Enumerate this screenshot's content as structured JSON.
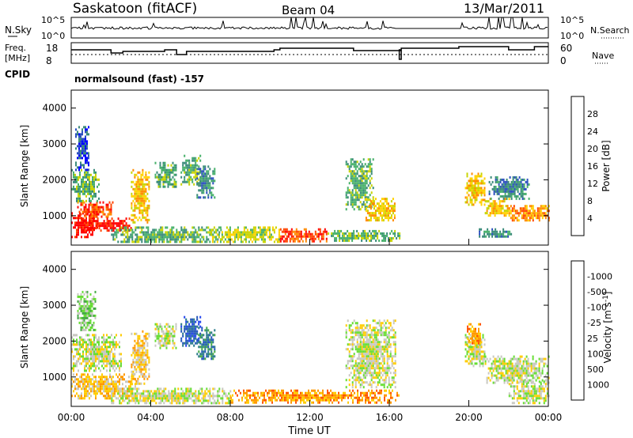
{
  "header": {
    "station": "Saskatoon (fitACF)",
    "beam": "Beam 04",
    "date": "13/Mar/2011"
  },
  "top_panel": {
    "left_label": "N.Sky",
    "left_ticks": [
      "10^5",
      "10^0"
    ],
    "right_label": "N.Search",
    "right_ticks": [
      "10^5",
      "10^0"
    ]
  },
  "freq_panel": {
    "left_label_1": "Freq.",
    "left_label_2": "[MHz]",
    "left_ticks": [
      "18",
      "8"
    ],
    "right_label": "Nave",
    "right_ticks": [
      "60",
      "0"
    ]
  },
  "cpid": {
    "label": "CPID",
    "program": "normalsound (fast) -157"
  },
  "colors": {
    "power_scale": [
      "#0000ff",
      "#2c4fc0",
      "#3a8a7a",
      "#47b06a",
      "#c8d400",
      "#ffd200",
      "#ff8c00",
      "#ff4500",
      "#ff0000"
    ],
    "velocity_scale": [
      "#2244ee",
      "#2255bb",
      "#2a7a8a",
      "#44aa44",
      "#66dd33",
      "#c8c8c0",
      "#ffcc00",
      "#ff9900",
      "#ff5500",
      "#ff0000"
    ],
    "ground_scatter": "#c8c8c0"
  },
  "chart_data": [
    {
      "type": "heatmap",
      "name": "power",
      "xlabel": "",
      "ylabel": "Slant Range [km]",
      "ylim": [
        180,
        4500
      ],
      "yticks": [
        "1000",
        "2000",
        "3000",
        "4000"
      ],
      "colorbar_label": "Power [dB]",
      "colorbar_ticks": [
        "4",
        "8",
        "12",
        "16",
        "20",
        "24",
        "28"
      ],
      "blobs": [
        {
          "t0": 0.0,
          "t1": 1.3,
          "r0": 400,
          "r1": 1100,
          "level": 8
        },
        {
          "t0": 0.3,
          "t1": 2.1,
          "r0": 1000,
          "r1": 1400,
          "level": 7
        },
        {
          "t0": 0.5,
          "t1": 3.0,
          "r0": 600,
          "r1": 950,
          "level": 8
        },
        {
          "t0": 0.0,
          "t1": 1.4,
          "r0": 1400,
          "r1": 2300,
          "level": 3
        },
        {
          "t0": 0.2,
          "t1": 0.9,
          "r0": 2300,
          "r1": 3500,
          "level": 1
        },
        {
          "t0": 3.0,
          "t1": 3.9,
          "r0": 800,
          "r1": 2300,
          "level": 5
        },
        {
          "t0": 4.2,
          "t1": 5.3,
          "r0": 1800,
          "r1": 2500,
          "level": 3
        },
        {
          "t0": 5.5,
          "t1": 6.5,
          "r0": 1900,
          "r1": 2700,
          "level": 3
        },
        {
          "t0": 6.3,
          "t1": 7.2,
          "r0": 1500,
          "r1": 2400,
          "level": 2
        },
        {
          "t0": 2.0,
          "t1": 7.5,
          "r0": 250,
          "r1": 700,
          "level": 3
        },
        {
          "t0": 7.0,
          "t1": 10.5,
          "r0": 300,
          "r1": 700,
          "level": 4
        },
        {
          "t0": 10.5,
          "t1": 12.9,
          "r0": 300,
          "r1": 650,
          "level": 7
        },
        {
          "t0": 12.9,
          "t1": 16.5,
          "r0": 300,
          "r1": 600,
          "level": 3
        },
        {
          "t0": 13.8,
          "t1": 15.2,
          "r0": 1200,
          "r1": 2600,
          "level": 3
        },
        {
          "t0": 14.8,
          "t1": 16.3,
          "r0": 900,
          "r1": 1500,
          "level": 5
        },
        {
          "t0": 19.8,
          "t1": 20.8,
          "r0": 1300,
          "r1": 2200,
          "level": 5
        },
        {
          "t0": 20.8,
          "t1": 22.0,
          "r0": 1000,
          "r1": 1500,
          "level": 5
        },
        {
          "t0": 22.0,
          "t1": 24.0,
          "r0": 850,
          "r1": 1300,
          "level": 6
        },
        {
          "t0": 20.5,
          "t1": 22.2,
          "r0": 400,
          "r1": 650,
          "level": 2
        },
        {
          "t0": 21.0,
          "t1": 23.0,
          "r0": 1500,
          "r1": 2100,
          "level": 2
        }
      ]
    },
    {
      "type": "heatmap",
      "name": "velocity",
      "xlabel": "Time UT",
      "ylabel": "Slant Range [km]",
      "ylim": [
        180,
        4500
      ],
      "yticks": [
        "1000",
        "2000",
        "3000",
        "4000"
      ],
      "xticks": [
        "00:00",
        "04:00",
        "08:00",
        "12:00",
        "16:00",
        "20:00",
        "00:00"
      ],
      "colorbar_label": "Velocity [m s^-1]",
      "colorbar_ticks": [
        "1000",
        "500",
        "100",
        "25",
        "-25",
        "-100",
        "-500",
        "-1000"
      ],
      "blobs": [
        {
          "t0": 0.0,
          "t1": 3.2,
          "r0": 400,
          "r1": 1100,
          "level": 6
        },
        {
          "t0": 0.0,
          "t1": 2.5,
          "r0": 1200,
          "r1": 2200,
          "level": 5
        },
        {
          "t0": 0.3,
          "t1": 1.2,
          "r0": 2300,
          "r1": 3400,
          "level": 4
        },
        {
          "t0": 3.0,
          "t1": 3.9,
          "r0": 800,
          "r1": 2300,
          "level": 6
        },
        {
          "t0": 4.2,
          "t1": 5.3,
          "r0": 1800,
          "r1": 2500,
          "level": 5
        },
        {
          "t0": 5.5,
          "t1": 6.5,
          "r0": 1900,
          "r1": 2700,
          "level": 1
        },
        {
          "t0": 6.3,
          "t1": 7.2,
          "r0": 1500,
          "r1": 2400,
          "level": 2
        },
        {
          "t0": 2.0,
          "t1": 8.0,
          "r0": 250,
          "r1": 700,
          "level": 5
        },
        {
          "t0": 8.0,
          "t1": 16.5,
          "r0": 300,
          "r1": 650,
          "level": 7
        },
        {
          "t0": 13.8,
          "t1": 16.3,
          "r0": 700,
          "r1": 2600,
          "level": 5
        },
        {
          "t0": 19.8,
          "t1": 20.8,
          "r0": 1300,
          "r1": 2200,
          "level": 5
        },
        {
          "t0": 19.9,
          "t1": 20.6,
          "r0": 1900,
          "r1": 2500,
          "level": 7
        },
        {
          "t0": 20.8,
          "t1": 24.0,
          "r0": 850,
          "r1": 1600,
          "level": 5
        },
        {
          "t0": 22.0,
          "t1": 24.0,
          "r0": 300,
          "r1": 900,
          "level": 5
        }
      ]
    }
  ]
}
